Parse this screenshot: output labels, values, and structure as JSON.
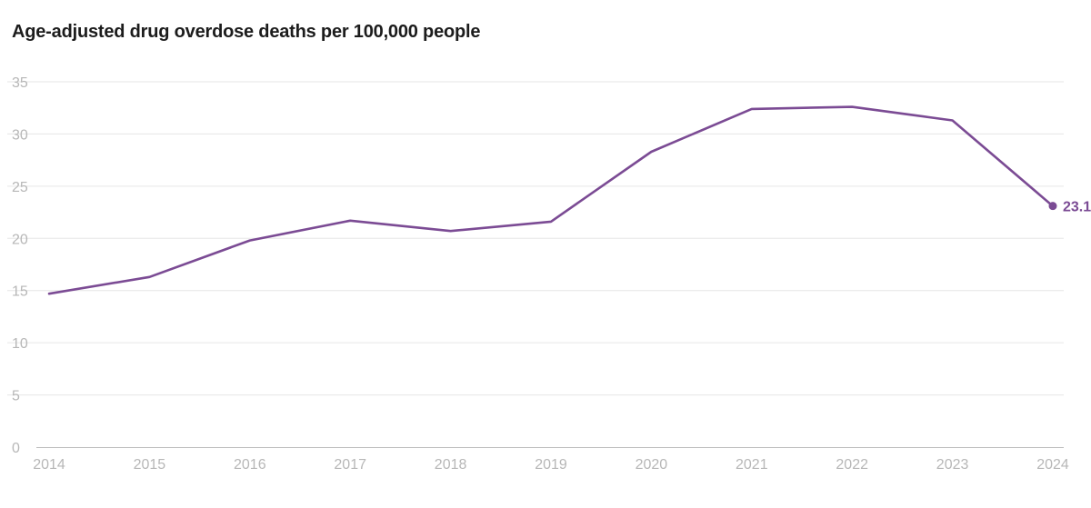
{
  "chart_data": {
    "type": "line",
    "title": "Age-adjusted drug overdose deaths per 100,000 people",
    "xlabel": "",
    "ylabel": "",
    "x": [
      "2014",
      "2015",
      "2016",
      "2017",
      "2018",
      "2019",
      "2020",
      "2021",
      "2022",
      "2023",
      "2024"
    ],
    "series": [
      {
        "values": [
          14.7,
          16.3,
          19.8,
          21.7,
          20.7,
          21.6,
          28.3,
          32.4,
          32.6,
          31.3,
          23.1
        ]
      }
    ],
    "ylim": [
      0,
      35
    ],
    "yticks": [
      "0",
      "5",
      "10",
      "15",
      "20",
      "25",
      "30",
      "35"
    ],
    "end_label": "23.1",
    "grid": true,
    "legend": "none",
    "colors": {
      "line": "#7b4b94",
      "grid": "#e6e6e6",
      "axis": "#bdbdbd",
      "tick_text": "#b7b7b7",
      "title": "#1c1c1c"
    }
  }
}
